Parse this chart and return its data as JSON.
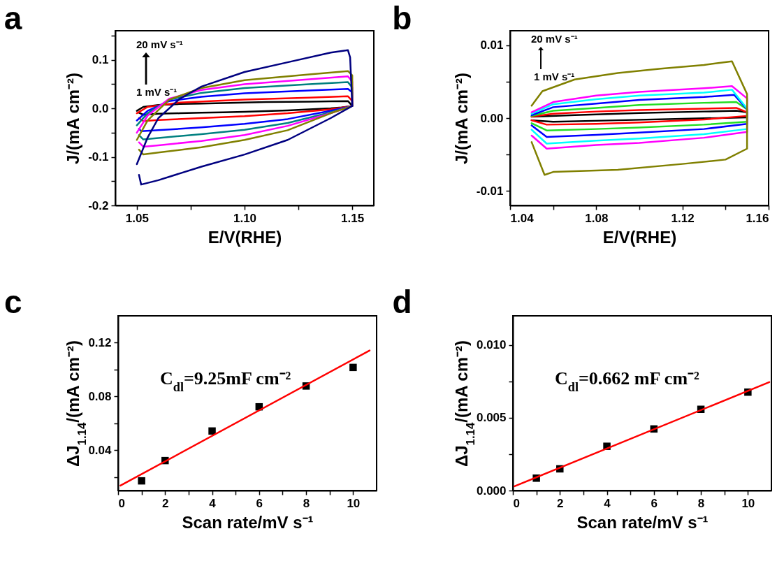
{
  "chart_data": [
    {
      "type": "line",
      "title": "a",
      "xlabel": "E/V(RHE)",
      "ylabel": "J/(mA cm⁻²)",
      "xlim": [
        1.04,
        1.16
      ],
      "xticks": [
        1.05,
        {
          "value": 1.075,
          "label": null
        },
        {
          "value": 1.1,
          "label": "1.10"
        },
        {
          "value": 1.125,
          "label": null
        },
        1.15
      ],
      "ylim": [
        -0.2,
        0.16
      ],
      "yticks": [
        -0.2,
        {
          "value": -0.15,
          "label": null
        },
        -0.1,
        {
          "value": -0.05,
          "label": null
        },
        {
          "value": 0,
          "label": "0.0"
        },
        {
          "value": 0.05,
          "label": null
        },
        0.1,
        {
          "value": 0.15,
          "label": null
        }
      ],
      "annotations": [
        "20 mV s⁻¹",
        "1 mV s⁻¹"
      ],
      "series": [
        {
          "color": "#000000",
          "x": [
            1.05,
            1.053,
            1.06,
            1.07,
            1.08,
            1.09,
            1.1,
            1.11,
            1.12,
            1.13,
            1.14,
            1.148,
            1.15,
            1.145,
            1.14,
            1.13,
            1.12,
            1.11,
            1.1,
            1.09,
            1.08,
            1.07,
            1.06,
            1.053,
            1.051
          ],
          "values": [
            -0.005,
            0.003,
            0.007,
            0.009,
            0.01,
            0.011,
            0.012,
            0.013,
            0.0135,
            0.014,
            0.0145,
            0.015,
            0.005,
            0.002,
            0.0,
            -0.002,
            -0.004,
            -0.0055,
            -0.007,
            -0.008,
            -0.009,
            -0.01,
            -0.011,
            -0.013,
            -0.009
          ]
        },
        {
          "color": "#ff0000",
          "x": [
            1.05,
            1.055,
            1.07,
            1.1,
            1.13,
            1.148,
            1.15,
            1.15,
            1.14,
            1.12,
            1.1,
            1.08,
            1.06,
            1.053,
            1.051
          ],
          "values": [
            -0.01,
            0.003,
            0.012,
            0.018,
            0.022,
            0.025,
            0.015,
            0.005,
            -0.002,
            -0.01,
            -0.016,
            -0.02,
            -0.024,
            -0.026,
            -0.02
          ]
        },
        {
          "color": "#0000ff",
          "x": [
            1.05,
            1.055,
            1.065,
            1.08,
            1.1,
            1.13,
            1.148,
            1.15,
            1.15,
            1.14,
            1.12,
            1.1,
            1.08,
            1.06,
            1.052,
            1.051
          ],
          "values": [
            -0.025,
            -0.005,
            0.015,
            0.024,
            0.031,
            0.037,
            0.04,
            0.033,
            0.005,
            -0.005,
            -0.022,
            -0.032,
            -0.039,
            -0.045,
            -0.047,
            -0.042
          ]
        },
        {
          "color": "#008080",
          "x": [
            1.05,
            1.055,
            1.065,
            1.08,
            1.1,
            1.13,
            1.148,
            1.15,
            1.15,
            1.14,
            1.12,
            1.1,
            1.08,
            1.06,
            1.053,
            1.051
          ],
          "values": [
            -0.035,
            -0.01,
            0.018,
            0.032,
            0.042,
            0.05,
            0.054,
            0.043,
            0.005,
            -0.008,
            -0.03,
            -0.044,
            -0.053,
            -0.061,
            -0.064,
            -0.055
          ]
        },
        {
          "color": "#ff00ff",
          "x": [
            1.05,
            1.055,
            1.065,
            1.08,
            1.1,
            1.13,
            1.148,
            1.15,
            1.15,
            1.14,
            1.12,
            1.1,
            1.08,
            1.06,
            1.053,
            1.051
          ],
          "values": [
            -0.05,
            -0.015,
            0.02,
            0.038,
            0.05,
            0.06,
            0.066,
            0.055,
            0.005,
            -0.01,
            -0.036,
            -0.055,
            -0.067,
            -0.076,
            -0.079,
            -0.07
          ]
        },
        {
          "color": "#808000",
          "x": [
            1.05,
            1.055,
            1.065,
            1.08,
            1.1,
            1.13,
            1.148,
            1.15,
            1.15,
            1.14,
            1.12,
            1.1,
            1.08,
            1.06,
            1.053,
            1.051
          ],
          "values": [
            -0.065,
            -0.025,
            0.018,
            0.042,
            0.058,
            0.07,
            0.077,
            0.068,
            0.005,
            -0.01,
            -0.045,
            -0.065,
            -0.08,
            -0.091,
            -0.095,
            -0.085
          ]
        },
        {
          "color": "#000080",
          "x": [
            1.05,
            1.055,
            1.06,
            1.07,
            1.08,
            1.1,
            1.12,
            1.14,
            1.148,
            1.149,
            1.15,
            1.14,
            1.12,
            1.1,
            1.08,
            1.06,
            1.052,
            1.051
          ],
          "values": [
            -0.115,
            -0.06,
            -0.02,
            0.02,
            0.045,
            0.075,
            0.095,
            0.115,
            0.12,
            0.105,
            0.005,
            -0.02,
            -0.065,
            -0.095,
            -0.12,
            -0.148,
            -0.157,
            -0.137
          ]
        }
      ]
    },
    {
      "type": "line",
      "title": "b",
      "xlabel": "E/V(RHE)",
      "ylabel": "J/(mA cm⁻²)",
      "xlim": [
        1.04,
        1.16
      ],
      "xticks": [
        1.04,
        {
          "value": 1.06,
          "label": null
        },
        1.08,
        {
          "value": 1.1,
          "label": null
        },
        1.12,
        {
          "value": 1.14,
          "label": null
        },
        1.16
      ],
      "ylim": [
        -0.012,
        0.012
      ],
      "yticks": [
        -0.01,
        {
          "value": -0.005,
          "label": null
        },
        {
          "value": 0,
          "label": "0.00"
        },
        {
          "value": 0.005,
          "label": null
        },
        0.01
      ],
      "annotations": [
        "20 mV s⁻¹",
        "1 mV s⁻¹"
      ],
      "series": [
        {
          "color": "#000000",
          "x": [
            1.05,
            1.07,
            1.1,
            1.13,
            1.145,
            1.15,
            1.15,
            1.12,
            1.09,
            1.06,
            1.05
          ],
          "values": [
            0.0002,
            0.0004,
            0.0007,
            0.0009,
            0.001,
            0.0008,
            0.0001,
            -0.0001,
            -0.0003,
            -0.0005,
            -0.0003
          ]
        },
        {
          "color": "#ff0000",
          "x": [
            1.05,
            1.06,
            1.08,
            1.1,
            1.13,
            1.145,
            1.15,
            1.15,
            1.13,
            1.1,
            1.08,
            1.057,
            1.05
          ],
          "values": [
            0.0002,
            0.0006,
            0.0009,
            0.0011,
            0.0013,
            0.0014,
            0.0008,
            0.0003,
            -0.0002,
            -0.0006,
            -0.0008,
            -0.0009,
            -0.0003
          ]
        },
        {
          "color": "#22dd22",
          "x": [
            1.05,
            1.06,
            1.08,
            1.1,
            1.13,
            1.145,
            1.15,
            1.15,
            1.13,
            1.1,
            1.08,
            1.057,
            1.05
          ],
          "values": [
            0.0003,
            0.001,
            0.0014,
            0.0018,
            0.0021,
            0.0022,
            0.0012,
            -0.0005,
            -0.0009,
            -0.0013,
            -0.0015,
            -0.0017,
            -0.0007
          ]
        },
        {
          "color": "#0000ff",
          "x": [
            1.05,
            1.06,
            1.08,
            1.1,
            1.13,
            1.144,
            1.15,
            1.15,
            1.13,
            1.1,
            1.08,
            1.057,
            1.05
          ],
          "values": [
            0.0004,
            0.0015,
            0.002,
            0.0025,
            0.0029,
            0.0032,
            0.0012,
            -0.0008,
            -0.0015,
            -0.002,
            -0.0023,
            -0.0026,
            -0.001
          ]
        },
        {
          "color": "#00ffff",
          "x": [
            1.05,
            1.06,
            1.08,
            1.1,
            1.13,
            1.143,
            1.15,
            1.15,
            1.13,
            1.1,
            1.08,
            1.057,
            1.05
          ],
          "values": [
            0.0006,
            0.0019,
            0.0026,
            0.0031,
            0.0035,
            0.0039,
            0.0013,
            -0.0015,
            -0.0022,
            -0.0028,
            -0.0031,
            -0.0035,
            -0.0016
          ]
        },
        {
          "color": "#ff00ff",
          "x": [
            1.05,
            1.06,
            1.08,
            1.1,
            1.13,
            1.143,
            1.15,
            1.15,
            1.13,
            1.1,
            1.08,
            1.057,
            1.05
          ],
          "values": [
            0.0008,
            0.0022,
            0.0031,
            0.0036,
            0.0041,
            0.0044,
            0.0027,
            -0.0019,
            -0.0027,
            -0.0034,
            -0.0037,
            -0.0042,
            -0.0024
          ]
        },
        {
          "color": "#808000",
          "x": [
            1.05,
            1.055,
            1.07,
            1.09,
            1.11,
            1.13,
            1.143,
            1.15,
            1.15,
            1.14,
            1.12,
            1.09,
            1.06,
            1.056,
            1.05
          ],
          "values": [
            0.0017,
            0.0037,
            0.0053,
            0.0062,
            0.0068,
            0.0073,
            0.0078,
            0.0033,
            -0.0042,
            -0.0057,
            -0.0063,
            -0.0071,
            -0.0074,
            -0.0078,
            -0.0033
          ]
        }
      ]
    },
    {
      "type": "scatter",
      "title": "c",
      "xlabel": "Scan rate/mV s⁻¹",
      "ylabel": "ΔJ$_{1.14}$/(mA cm⁻²)",
      "xlim": [
        0,
        11
      ],
      "xticks": [
        0,
        {
          "value": 1,
          "label": null
        },
        2,
        {
          "value": 3,
          "label": null
        },
        4,
        {
          "value": 5,
          "label": null
        },
        6,
        {
          "value": 7,
          "label": null
        },
        8,
        {
          "value": 9,
          "label": null
        },
        10
      ],
      "ylim": [
        0.01,
        0.14
      ],
      "yticks": [
        {
          "value": 0.02,
          "label": null
        },
        0.04,
        {
          "value": 0.06,
          "label": null
        },
        0.08,
        {
          "value": 0.1,
          "label": null
        },
        0.12
      ],
      "annotations": [
        "C$_{dl}$=9.25mF cm⁻²"
      ],
      "series": [
        {
          "color": "#000000",
          "marker": "square",
          "x": [
            1,
            2,
            4,
            6,
            8,
            10
          ],
          "values": [
            0.0172,
            0.0323,
            0.0543,
            0.0723,
            0.0878,
            0.1016
          ]
        },
        {
          "type": "line",
          "color": "#ff0000",
          "x": [
            0.1,
            10.7
          ],
          "values": [
            0.0137,
            0.1142
          ]
        }
      ]
    },
    {
      "type": "scatter",
      "title": "d",
      "xlabel": "Scan rate/mV s⁻¹",
      "ylabel": "ΔJ$_{1.14}$/(mA cm⁻²)",
      "xlim": [
        0,
        11
      ],
      "xticks": [
        0,
        {
          "value": 1,
          "label": null
        },
        2,
        {
          "value": 3,
          "label": null
        },
        4,
        {
          "value": 5,
          "label": null
        },
        6,
        {
          "value": 7,
          "label": null
        },
        8,
        {
          "value": 9,
          "label": null
        },
        10
      ],
      "ylim": [
        0,
        0.012
      ],
      "yticks": [
        {
          "value": 0,
          "label": "0.000"
        },
        {
          "value": 0.0025,
          "label": null
        },
        0.005,
        {
          "value": 0.0075,
          "label": null
        },
        {
          "value": 0.01,
          "label": "0.010"
        }
      ],
      "annotations": [
        "C$_{dl}$=0.662 mF cm⁻²"
      ],
      "series": [
        {
          "color": "#000000",
          "marker": "square",
          "x": [
            1,
            2,
            4,
            6,
            8,
            10
          ],
          "values": [
            0.00085,
            0.00149,
            0.00304,
            0.00423,
            0.00558,
            0.00676
          ]
        },
        {
          "type": "line",
          "color": "#ff0000",
          "x": [
            0.07,
            10.91
          ],
          "values": [
            0.00029,
            0.00745
          ]
        }
      ]
    }
  ]
}
